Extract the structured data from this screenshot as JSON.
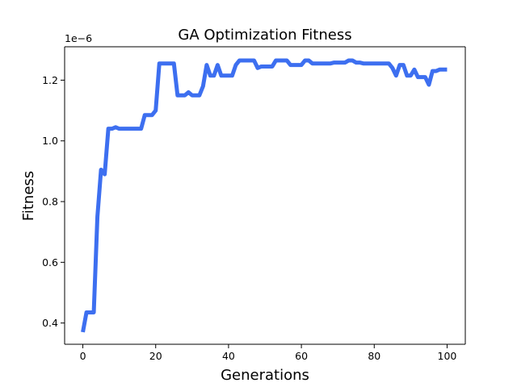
{
  "chart_data": {
    "type": "line",
    "title": "GA Optimization Fitness",
    "xlabel": "Generations",
    "ylabel": "Fitness",
    "offset_text": "1e−6",
    "scale": 1e-06,
    "xlim": [
      -5,
      105
    ],
    "ylim": [
      0.33,
      1.31
    ],
    "xticks": [
      0,
      20,
      40,
      60,
      80,
      100
    ],
    "yticks": [
      0.4,
      0.6,
      0.8,
      1.0,
      1.2
    ],
    "ytick_labels": [
      "0.4",
      "0.6",
      "0.8",
      "1.0",
      "1.2"
    ],
    "grid": false,
    "series": [
      {
        "color": "#3d6ff0",
        "x": [
          0,
          1,
          2,
          3,
          4,
          5,
          6,
          7,
          8,
          9,
          10,
          11,
          12,
          13,
          14,
          15,
          16,
          17,
          18,
          19,
          20,
          21,
          22,
          23,
          24,
          25,
          26,
          27,
          28,
          29,
          30,
          31,
          32,
          33,
          34,
          35,
          36,
          37,
          38,
          39,
          40,
          41,
          42,
          43,
          44,
          45,
          46,
          47,
          48,
          49,
          50,
          51,
          52,
          53,
          54,
          55,
          56,
          57,
          58,
          59,
          60,
          61,
          62,
          63,
          64,
          65,
          66,
          67,
          68,
          69,
          70,
          71,
          72,
          73,
          74,
          75,
          76,
          77,
          78,
          79,
          80,
          81,
          82,
          83,
          84,
          85,
          86,
          87,
          88,
          89,
          90,
          91,
          92,
          93,
          94,
          95,
          96,
          97,
          98,
          99,
          100
        ],
        "y": [
          0.37,
          0.435,
          0.435,
          0.435,
          0.75,
          0.905,
          0.89,
          1.04,
          1.04,
          1.045,
          1.04,
          1.04,
          1.04,
          1.04,
          1.04,
          1.04,
          1.04,
          1.085,
          1.085,
          1.085,
          1.1,
          1.255,
          1.255,
          1.255,
          1.255,
          1.255,
          1.15,
          1.15,
          1.15,
          1.16,
          1.15,
          1.15,
          1.15,
          1.18,
          1.25,
          1.215,
          1.215,
          1.25,
          1.215,
          1.215,
          1.215,
          1.215,
          1.25,
          1.265,
          1.265,
          1.265,
          1.265,
          1.265,
          1.24,
          1.245,
          1.245,
          1.245,
          1.245,
          1.265,
          1.265,
          1.265,
          1.265,
          1.25,
          1.25,
          1.25,
          1.25,
          1.265,
          1.265,
          1.255,
          1.255,
          1.255,
          1.255,
          1.255,
          1.255,
          1.258,
          1.258,
          1.258,
          1.258,
          1.265,
          1.265,
          1.258,
          1.258,
          1.255,
          1.255,
          1.255,
          1.255,
          1.255,
          1.255,
          1.255,
          1.255,
          1.24,
          1.215,
          1.25,
          1.25,
          1.215,
          1.215,
          1.235,
          1.21,
          1.21,
          1.21,
          1.185,
          1.23,
          1.23,
          1.235,
          1.235,
          1.235
        ]
      }
    ]
  }
}
